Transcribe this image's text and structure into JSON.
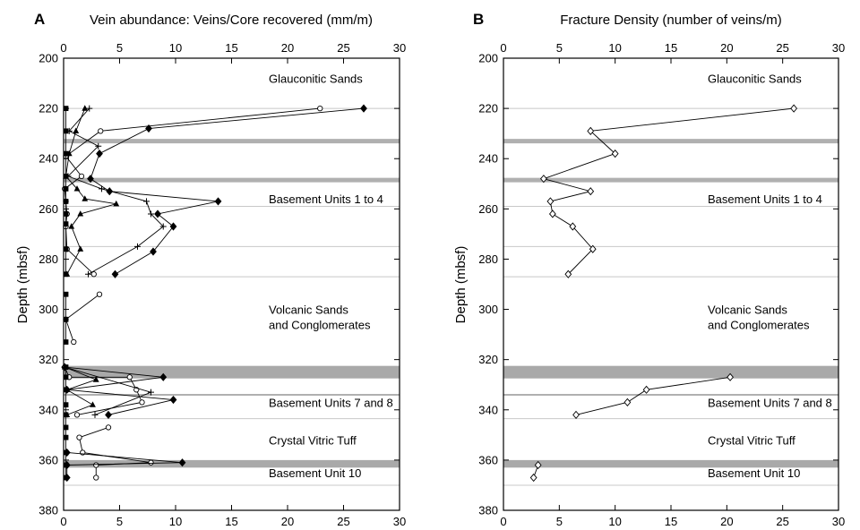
{
  "chart_data": [
    {
      "type": "line",
      "panel_label": "A",
      "xlabel": "Vein abundance: Veins/Core recovered (mm/m)",
      "ylabel": "Depth (mbsf)",
      "xlim": [
        0,
        30
      ],
      "ylim": [
        380,
        200
      ],
      "x_ticks": [
        "0",
        "5",
        "10",
        "15",
        "20",
        "25",
        "30"
      ],
      "y_ticks": [
        "200",
        "220",
        "240",
        "260",
        "280",
        "300",
        "320",
        "340",
        "360",
        "380"
      ],
      "grid": false,
      "series": [
        {
          "marker": "filled-diamond",
          "points": [
            [
              26.8,
              220
            ],
            [
              7.6,
              228
            ],
            [
              3.2,
              238
            ],
            [
              2.4,
              248
            ],
            [
              4.1,
              253
            ],
            [
              13.8,
              257
            ],
            [
              8.4,
              262
            ],
            [
              9.8,
              267
            ],
            [
              8.0,
              277
            ],
            [
              4.6,
              286
            ]
          ]
        },
        {
          "marker": "open-circle",
          "points": [
            [
              22.9,
              220
            ],
            [
              3.3,
              229
            ],
            [
              0.2,
              239
            ],
            [
              1.6,
              247
            ],
            [
              0.1,
              252
            ],
            [
              0.2,
              257
            ],
            [
              0.3,
              262
            ],
            [
              0.2,
              267
            ],
            [
              0.3,
              276
            ],
            [
              2.7,
              286
            ]
          ]
        },
        {
          "marker": "plus",
          "points": [
            [
              2.3,
              220
            ],
            [
              0.5,
              229
            ],
            [
              3.1,
              235
            ],
            [
              0.4,
              247
            ],
            [
              3.4,
              252
            ],
            [
              7.4,
              257
            ],
            [
              7.8,
              262
            ],
            [
              8.9,
              267
            ],
            [
              6.6,
              275
            ],
            [
              2.2,
              286
            ]
          ]
        },
        {
          "marker": "filled-triangle",
          "points": [
            [
              1.9,
              220
            ],
            [
              1.1,
              229
            ],
            [
              0.5,
              238
            ],
            [
              0.2,
              247
            ],
            [
              1.2,
              252
            ],
            [
              1.9,
              256
            ],
            [
              4.7,
              258
            ],
            [
              1.5,
              262
            ],
            [
              0.7,
              267
            ],
            [
              1.5,
              276
            ],
            [
              0.3,
              286
            ]
          ]
        },
        {
          "marker": "filled-square",
          "points": [
            [
              0.2,
              220
            ],
            [
              0.2,
              229
            ],
            [
              0.2,
              238
            ],
            [
              0.2,
              247
            ],
            [
              0.2,
              252
            ],
            [
              0.2,
              257
            ],
            [
              0.2,
              262
            ],
            [
              0.2,
              266
            ],
            [
              0.2,
              276
            ],
            [
              0.2,
              286
            ]
          ]
        },
        {
          "marker": "open-circle",
          "points": [
            [
              3.2,
              294
            ],
            [
              0.2,
              304
            ],
            [
              0.9,
              313
            ]
          ]
        },
        {
          "marker": "filled-square",
          "points": [
            [
              0.2,
              294
            ],
            [
              0.2,
              304
            ],
            [
              0.2,
              313
            ]
          ]
        },
        {
          "marker": "filled-diamond",
          "points": [
            [
              0.1,
              323
            ],
            [
              8.9,
              327
            ],
            [
              0.3,
              332
            ],
            [
              9.8,
              336
            ],
            [
              4.0,
              342
            ]
          ]
        },
        {
          "marker": "open-circle",
          "points": [
            [
              0.1,
              323
            ],
            [
              0.5,
              327
            ],
            [
              5.9,
              327
            ],
            [
              6.5,
              332
            ],
            [
              7.0,
              337
            ],
            [
              1.2,
              342
            ]
          ]
        },
        {
          "marker": "plus",
          "points": [
            [
              0.1,
              323
            ],
            [
              7.8,
              333
            ],
            [
              2.8,
              342
            ]
          ]
        },
        {
          "marker": "filled-triangle",
          "points": [
            [
              0.1,
              323
            ],
            [
              2.9,
              328
            ],
            [
              0.3,
              332
            ],
            [
              2.6,
              338
            ],
            [
              0.3,
              342
            ]
          ]
        },
        {
          "marker": "open-circle",
          "points": [
            [
              4.0,
              347
            ],
            [
              1.4,
              351
            ],
            [
              1.7,
              357
            ],
            [
              7.8,
              361
            ],
            [
              2.9,
              362
            ],
            [
              2.9,
              367
            ]
          ]
        },
        {
          "marker": "filled-diamond",
          "points": [
            [
              0.3,
              357
            ],
            [
              10.6,
              361
            ],
            [
              0.3,
              362
            ],
            [
              0.3,
              367
            ]
          ]
        },
        {
          "marker": "filled-square",
          "points": [
            [
              0.2,
              323
            ],
            [
              0.2,
              327
            ],
            [
              0.2,
              332
            ],
            [
              0.2,
              338
            ],
            [
              0.2,
              342
            ],
            [
              0.2,
              347
            ],
            [
              0.2,
              351
            ],
            [
              0.2,
              357
            ],
            [
              0.2,
              362
            ],
            [
              0.2,
              367
            ]
          ]
        }
      ]
    },
    {
      "type": "line",
      "panel_label": "B",
      "xlabel": "Fracture Density (number of veins/m)",
      "ylabel": "Depth (mbsf)",
      "xlim": [
        0,
        30
      ],
      "ylim": [
        380,
        200
      ],
      "x_ticks": [
        "0",
        "5",
        "10",
        "15",
        "20",
        "25",
        "30"
      ],
      "y_ticks": [
        "200",
        "220",
        "240",
        "260",
        "280",
        "300",
        "320",
        "340",
        "360",
        "380"
      ],
      "grid": false,
      "series": [
        {
          "marker": "open-diamond",
          "points": [
            [
              26.0,
              220
            ],
            [
              7.8,
              229
            ],
            [
              10.0,
              238
            ],
            [
              3.6,
              248
            ],
            [
              7.8,
              253
            ],
            [
              4.2,
              257
            ],
            [
              4.4,
              262
            ],
            [
              6.2,
              267
            ],
            [
              8.0,
              276
            ],
            [
              5.8,
              286
            ]
          ]
        },
        {
          "marker": "open-diamond",
          "points": [
            [
              20.3,
              327
            ],
            [
              12.8,
              332
            ],
            [
              11.1,
              337
            ],
            [
              6.5,
              342
            ]
          ]
        },
        {
          "marker": "open-diamond",
          "points": [
            [
              3.1,
              362
            ],
            [
              2.7,
              367
            ]
          ]
        }
      ]
    }
  ],
  "unit_labels": [
    {
      "text": "Glauconitic Sands",
      "depth": 208
    },
    {
      "text": "Basement Units 1 to 4",
      "depth": 256
    },
    {
      "text": "Volcanic Sands",
      "depth": 300
    },
    {
      "text": "and Conglomerates",
      "depth": 306
    },
    {
      "text": "Basement Units 7 and 8",
      "depth": 337
    },
    {
      "text": "Crystal Vitric Tuff",
      "depth": 352
    },
    {
      "text": "Basement Unit 10",
      "depth": 365
    }
  ],
  "boundaries": [
    {
      "depth": 220,
      "style": "thin"
    },
    {
      "depth": 233,
      "style": "thick"
    },
    {
      "depth": 248.5,
      "style": "thick"
    },
    {
      "depth": 259,
      "style": "thin"
    },
    {
      "depth": 275,
      "style": "thin"
    },
    {
      "depth": 287,
      "style": "thin"
    },
    {
      "depth": 334,
      "style": "medium"
    },
    {
      "depth": 343.5,
      "style": "thin"
    },
    {
      "depth": 370,
      "style": "thin"
    }
  ],
  "bands": [
    {
      "from": 322.5,
      "to": 327.5
    },
    {
      "from": 360,
      "to": 363
    }
  ],
  "colors": {
    "axis": "#000000",
    "line": "#000000",
    "band": "#a9a9a9",
    "boundary": "#b0b0b0",
    "boundary_thin": "#c8c8c8"
  }
}
